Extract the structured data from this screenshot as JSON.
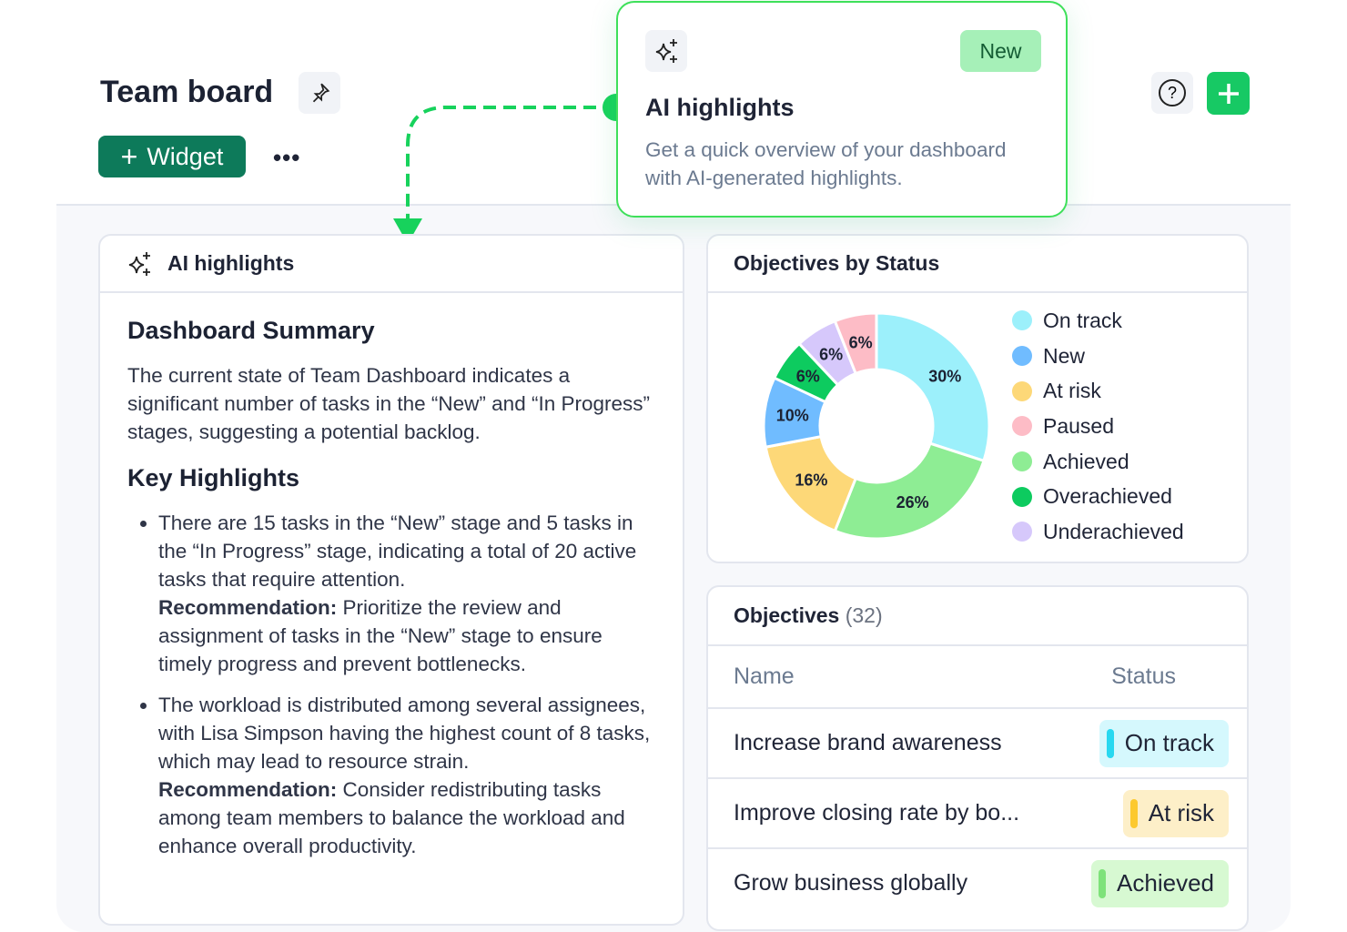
{
  "header": {
    "title": "Team board",
    "widget_label": "Widget",
    "more_label": "•••"
  },
  "popover": {
    "badge": "New",
    "title": "AI highlights",
    "description": "Get a quick overview of your dashboard with AI-generated highlights."
  },
  "ai_card": {
    "title": "AI highlights",
    "summary_heading": "Dashboard Summary",
    "summary": "The current state of Team Dashboard indicates a significant number of tasks in the “New” and “In Progress” stages, suggesting a potential backlog.",
    "highlights_heading": "Key Highlights",
    "items": [
      {
        "text": "There are 15 tasks in the “New” stage and 5 tasks in the “In Progress” stage, indicating a total of 20 active tasks that require attention.",
        "rec_label": "Recommendation:",
        "rec": " Prioritize the review and assignment of tasks in the “New” stage to ensure timely progress and prevent bottlenecks."
      },
      {
        "text": "The workload is distributed among several assignees, with Lisa Simpson having the highest count of 8 tasks, which may lead to resource strain.",
        "rec_label": "Recommendation:",
        "rec": " Consider redistributing tasks among team members to balance the workload and enhance overall productivity."
      }
    ]
  },
  "chart_card": {
    "title": "Objectives by Status"
  },
  "chart_data": {
    "type": "pie",
    "donut": true,
    "legend_position": "right",
    "slices": [
      {
        "name": "On track",
        "value": 30,
        "label": "30%",
        "color": "#9cf0fb"
      },
      {
        "name": "Achieved",
        "value": 26,
        "label": "26%",
        "color": "#8eed94"
      },
      {
        "name": "At risk",
        "value": 16,
        "label": "16%",
        "color": "#fdd878"
      },
      {
        "name": "New",
        "value": 10,
        "label": "10%",
        "color": "#70bcff"
      },
      {
        "name": "Overachieved",
        "value": 6,
        "label": "6%",
        "color": "#0dcb5f"
      },
      {
        "name": "Underachieved",
        "value": 6,
        "label": "6%",
        "color": "#d6c8fb"
      },
      {
        "name": "Paused",
        "value": 6,
        "label": "6%",
        "color": "#fdbcc6"
      }
    ],
    "legend": [
      {
        "name": "On track",
        "color": "#9cf0fb"
      },
      {
        "name": "New",
        "color": "#70bcff"
      },
      {
        "name": "At risk",
        "color": "#fdd878"
      },
      {
        "name": "Paused",
        "color": "#fdbcc6"
      },
      {
        "name": "Achieved",
        "color": "#8eed94"
      },
      {
        "name": "Overachieved",
        "color": "#0dcb5f"
      },
      {
        "name": "Underachieved",
        "color": "#d6c8fb"
      }
    ]
  },
  "objectives": {
    "title": "Objectives",
    "count": "(32)",
    "col_name": "Name",
    "col_status": "Status",
    "rows": [
      {
        "name": "Increase brand awareness",
        "status": "On track",
        "bg": "#d5f8fd",
        "bar": "#28d8f0"
      },
      {
        "name": "Improve closing rate by bo...",
        "status": "At risk",
        "bg": "#fdefc8",
        "bar": "#fcc92e"
      },
      {
        "name": "Grow business globally",
        "status": "Achieved",
        "bg": "#d7f9d2",
        "bar": "#7ee27a"
      }
    ]
  }
}
